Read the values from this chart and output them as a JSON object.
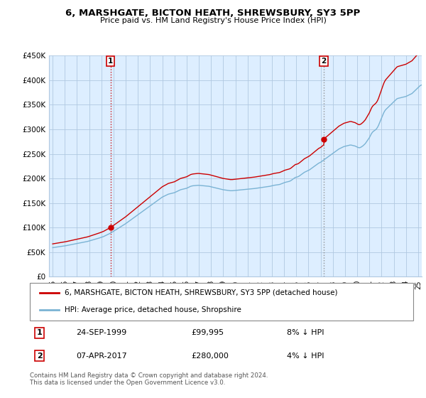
{
  "title": "6, MARSHGATE, BICTON HEATH, SHREWSBURY, SY3 5PP",
  "subtitle": "Price paid vs. HM Land Registry's House Price Index (HPI)",
  "ylim": [
    0,
    450000
  ],
  "yticks": [
    0,
    50000,
    100000,
    150000,
    200000,
    250000,
    300000,
    350000,
    400000,
    450000
  ],
  "ytick_labels": [
    "£0",
    "£50K",
    "£100K",
    "£150K",
    "£200K",
    "£250K",
    "£300K",
    "£350K",
    "£400K",
    "£450K"
  ],
  "sale1_yr": 1999,
  "sale1_price": 99995,
  "sale2_yr": 2017,
  "sale2_price": 280000,
  "sale1_date_str": "24-SEP-1999",
  "sale1_hpi_pct": "8% ↓ HPI",
  "sale2_date_str": "07-APR-2017",
  "sale2_hpi_pct": "4% ↓ HPI",
  "hpi_color": "#7ab3d4",
  "sale_color": "#cc0000",
  "bg_color": "#ddeeff",
  "grid_color": "#b0c8e0",
  "legend1_label": "6, MARSHGATE, BICTON HEATH, SHREWSBURY, SY3 5PP (detached house)",
  "legend2_label": "HPI: Average price, detached house, Shropshire",
  "footer": "Contains HM Land Registry data © Crown copyright and database right 2024.\nThis data is licensed under the Open Government Licence v3.0.",
  "xtick_labels": [
    "95",
    "96",
    "97",
    "98",
    "99",
    "00",
    "01",
    "02",
    "03",
    "04",
    "05",
    "06",
    "07",
    "08",
    "09",
    "10",
    "11",
    "12",
    "13",
    "14",
    "15",
    "16",
    "17",
    "18",
    "19",
    "20",
    "21",
    "22",
    "23",
    "24",
    "25"
  ],
  "hpi_monthly": [
    59000,
    59300,
    59600,
    59900,
    60200,
    60500,
    60800,
    61100,
    61400,
    61700,
    62000,
    62300,
    62600,
    63000,
    63400,
    63800,
    64200,
    64600,
    65000,
    65400,
    65800,
    66200,
    66600,
    67000,
    67400,
    67800,
    68200,
    68600,
    69000,
    69400,
    69800,
    70200,
    70600,
    71000,
    71500,
    72000,
    72600,
    73200,
    73800,
    74400,
    75000,
    75600,
    76200,
    76800,
    77400,
    78000,
    78700,
    79400,
    80100,
    80800,
    81500,
    82500,
    83500,
    84500,
    85500,
    86500,
    87500,
    88500,
    89800,
    91100,
    92400,
    93700,
    95000,
    96300,
    97600,
    98900,
    100200,
    101500,
    102800,
    104100,
    105400,
    106700,
    108000,
    109500,
    111000,
    112500,
    114000,
    115500,
    117000,
    118500,
    120000,
    121500,
    123000,
    124500,
    126000,
    127500,
    129000,
    130500,
    132000,
    133500,
    135000,
    136500,
    138000,
    139500,
    141000,
    142500,
    144000,
    145500,
    147000,
    148500,
    150000,
    151500,
    153000,
    154500,
    156000,
    157500,
    159000,
    160500,
    162000,
    163000,
    164000,
    165000,
    166000,
    167000,
    168000,
    168500,
    169000,
    169500,
    170000,
    170500,
    171000,
    172000,
    173000,
    174000,
    175000,
    176000,
    177000,
    177500,
    178000,
    178500,
    179000,
    179500,
    180000,
    181000,
    182000,
    183000,
    184000,
    184500,
    185000,
    185200,
    185400,
    185600,
    185800,
    186000,
    186000,
    185800,
    185600,
    185400,
    185200,
    185000,
    184800,
    184600,
    184400,
    184200,
    184000,
    183500,
    183000,
    182500,
    182000,
    181500,
    181000,
    180500,
    180000,
    179500,
    179000,
    178500,
    178000,
    177500,
    177000,
    176700,
    176400,
    176100,
    175800,
    175500,
    175200,
    175000,
    175000,
    175000,
    175200,
    175400,
    175600,
    175800,
    176000,
    176200,
    176400,
    176600,
    176800,
    177000,
    177200,
    177400,
    177600,
    177800,
    178000,
    178200,
    178400,
    178600,
    178800,
    179000,
    179200,
    179500,
    179800,
    180100,
    180400,
    180700,
    181000,
    181300,
    181600,
    181900,
    182200,
    182500,
    182800,
    183100,
    183400,
    183700,
    184000,
    184500,
    185000,
    185500,
    186000,
    186300,
    186600,
    186900,
    187200,
    187500,
    188000,
    188800,
    189600,
    190400,
    191200,
    192000,
    192500,
    193000,
    193500,
    194000,
    194800,
    196000,
    197500,
    199000,
    200500,
    202000,
    202500,
    203000,
    203800,
    205000,
    206500,
    208000,
    209500,
    211000,
    212500,
    213500,
    214500,
    215500,
    216500,
    217500,
    219000,
    220500,
    222000,
    223500,
    225000,
    226500,
    228000,
    229500,
    231000,
    232000,
    233000,
    234500,
    236000,
    237500,
    239000,
    240500,
    242000,
    243500,
    245000,
    246500,
    248000,
    249500,
    251000,
    252500,
    254000,
    255500,
    257000,
    258500,
    260000,
    261000,
    262000,
    263000,
    264000,
    265000,
    265500,
    266000,
    266500,
    267000,
    267500,
    268000,
    268000,
    267500,
    267000,
    266500,
    266000,
    265000,
    264000,
    263000,
    262500,
    263000,
    264000,
    265500,
    267000,
    269000,
    271000,
    274000,
    277000,
    280000,
    283000,
    287000,
    291000,
    294000,
    296000,
    297500,
    299000,
    301000,
    304000,
    308000,
    313000,
    318000,
    323000,
    328000,
    333000,
    337000,
    340000,
    342000,
    344000,
    346000,
    348000,
    350000,
    352000,
    354000,
    356000,
    358000,
    360000,
    362000,
    363000,
    363500,
    364000,
    364500,
    365000,
    365500,
    366000,
    366500,
    367000,
    368000,
    369000,
    370000,
    371000,
    372000,
    373000,
    375000,
    377000,
    379000,
    381000,
    383000,
    385000,
    387000,
    389000,
    390000,
    391000,
    392000,
    393000,
    394000,
    395000,
    396000,
    397000,
    398000
  ],
  "sale1_month_idx": 57,
  "sale2_month_idx": 267
}
